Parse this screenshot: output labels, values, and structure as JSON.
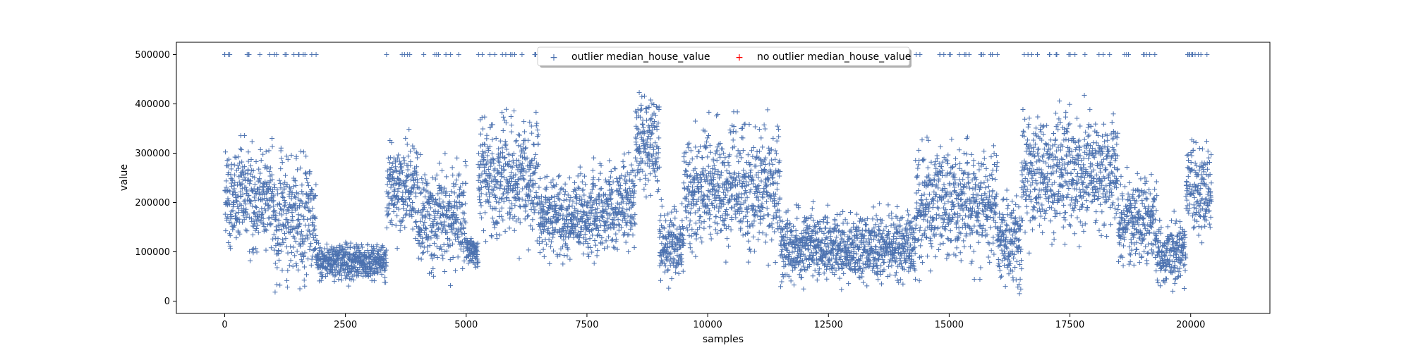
{
  "colors": {
    "outlier": "#4c72b0",
    "no_outlier": "#ff0000",
    "axis": "#000000",
    "background": "#ffffff"
  },
  "chart_data": {
    "type": "scatter",
    "title": "",
    "xlabel": "samples",
    "ylabel": "value",
    "xlim": [
      -1000,
      21640
    ],
    "ylim": [
      -25000,
      525000
    ],
    "xticks": [
      0,
      2500,
      5000,
      7500,
      10000,
      12500,
      15000,
      17500,
      20000
    ],
    "xtick_labels": [
      "0",
      "2500",
      "5000",
      "7500",
      "10000",
      "12500",
      "15000",
      "17500",
      "20000"
    ],
    "yticks": [
      0,
      100000,
      200000,
      300000,
      400000,
      500000
    ],
    "ytick_labels": [
      "0",
      "100000",
      "200000",
      "300000",
      "400000",
      "500000"
    ],
    "grid": false,
    "legend_position": "top-center",
    "marker": "+",
    "series": [
      {
        "name": "outlier median_house_value",
        "color": "#4c72b0",
        "n_points": 20433,
        "segments": [
          {
            "x": [
              0,
              1000
            ],
            "center": 210000,
            "spread": 75000
          },
          {
            "x": [
              1000,
              1900
            ],
            "center": 170000,
            "spread": 90000
          },
          {
            "x": [
              1900,
              3350
            ],
            "center": 80000,
            "spread": 25000
          },
          {
            "x": [
              3350,
              4000
            ],
            "center": 230000,
            "spread": 60000
          },
          {
            "x": [
              4000,
              5000
            ],
            "center": 170000,
            "spread": 70000
          },
          {
            "x": [
              5000,
              5250
            ],
            "center": 100000,
            "spread": 20000
          },
          {
            "x": [
              5250,
              6500
            ],
            "center": 250000,
            "spread": 80000
          },
          {
            "x": [
              6500,
              7600
            ],
            "center": 170000,
            "spread": 50000
          },
          {
            "x": [
              7600,
              8500
            ],
            "center": 190000,
            "spread": 60000
          },
          {
            "x": [
              8500,
              9000
            ],
            "center": 320000,
            "spread": 70000
          },
          {
            "x": [
              9000,
              9500
            ],
            "center": 120000,
            "spread": 50000
          },
          {
            "x": [
              9500,
              11500
            ],
            "center": 230000,
            "spread": 80000
          },
          {
            "x": [
              11500,
              14300
            ],
            "center": 110000,
            "spread": 45000
          },
          {
            "x": [
              14300,
              16000
            ],
            "center": 200000,
            "spread": 80000
          },
          {
            "x": [
              16000,
              16500
            ],
            "center": 130000,
            "spread": 60000
          },
          {
            "x": [
              16500,
              18500
            ],
            "center": 260000,
            "spread": 80000
          },
          {
            "x": [
              18500,
              19300
            ],
            "center": 160000,
            "spread": 60000
          },
          {
            "x": [
              19300,
              19900
            ],
            "center": 100000,
            "spread": 40000
          },
          {
            "x": [
              19900,
              20433
            ],
            "center": 220000,
            "spread": 70000
          }
        ],
        "capped_value": 500001
      },
      {
        "name": "no outlier median_house_value",
        "color": "#ff0000",
        "values": []
      }
    ]
  }
}
